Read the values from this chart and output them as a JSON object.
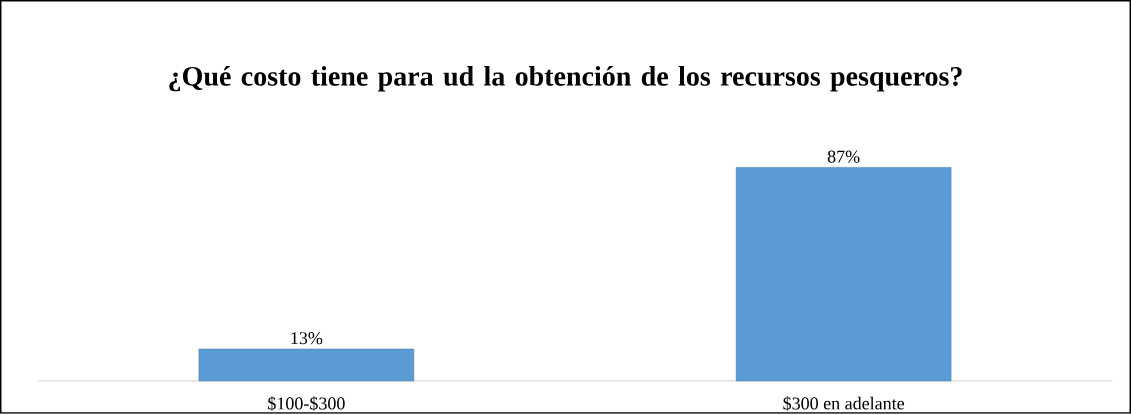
{
  "chart_data": {
    "type": "bar",
    "title": "¿Qué costo tiene para ud la obtención de los recursos pesqueros?",
    "categories": [
      "$100-$300",
      "$300 en adelante"
    ],
    "values": [
      13,
      87
    ],
    "value_labels": [
      "13%",
      "87%"
    ],
    "color": "#5b9bd5"
  }
}
